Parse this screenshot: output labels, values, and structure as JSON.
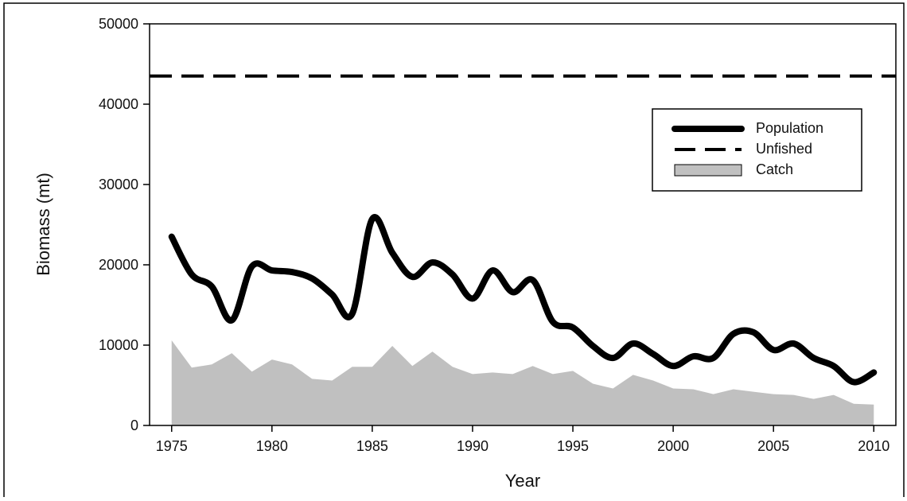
{
  "chart_data": {
    "type": "line",
    "x_label": "Year",
    "y_label": "Biomass (mt)",
    "x": [
      1975,
      1976,
      1977,
      1978,
      1979,
      1980,
      1981,
      1982,
      1983,
      1984,
      1985,
      1986,
      1987,
      1988,
      1989,
      1990,
      1991,
      1992,
      1993,
      1994,
      1995,
      1996,
      1997,
      1998,
      1999,
      2000,
      2001,
      2002,
      2003,
      2004,
      2005,
      2006,
      2007,
      2008,
      2009,
      2010
    ],
    "series": [
      {
        "name": "Population",
        "kind": "line",
        "color": "#000000",
        "values": [
          23500,
          18800,
          17300,
          13100,
          19800,
          19300,
          19100,
          18300,
          16300,
          13900,
          25700,
          21500,
          18500,
          20300,
          18800,
          15800,
          19300,
          16600,
          18100,
          12900,
          12200,
          9900,
          8400,
          10200,
          8900,
          7400,
          8600,
          8400,
          11400,
          11600,
          9400,
          10200,
          8400,
          7400,
          5400,
          6600
        ]
      },
      {
        "name": "Unfished",
        "kind": "hline",
        "color": "#000000",
        "value": 43500
      },
      {
        "name": "Catch",
        "kind": "area",
        "color": "#c0c0c0",
        "values": [
          10600,
          7200,
          7600,
          9000,
          6700,
          8200,
          7600,
          5800,
          5600,
          7300,
          7300,
          9900,
          7400,
          9200,
          7300,
          6400,
          6600,
          6400,
          7400,
          6400,
          6800,
          5200,
          4600,
          6300,
          5600,
          4600,
          4500,
          3900,
          4500,
          4200,
          3900,
          3800,
          3300,
          3800,
          2700,
          2600
        ]
      }
    ],
    "xlim": [
      1973.9,
      2011.1
    ],
    "xticks": [
      1975,
      1980,
      1985,
      1990,
      1995,
      2000,
      2005,
      2010
    ],
    "ylim": [
      0,
      50000
    ],
    "yticks": [
      0,
      10000,
      20000,
      30000,
      40000,
      50000
    ],
    "legend": "upper right",
    "grid": false
  }
}
